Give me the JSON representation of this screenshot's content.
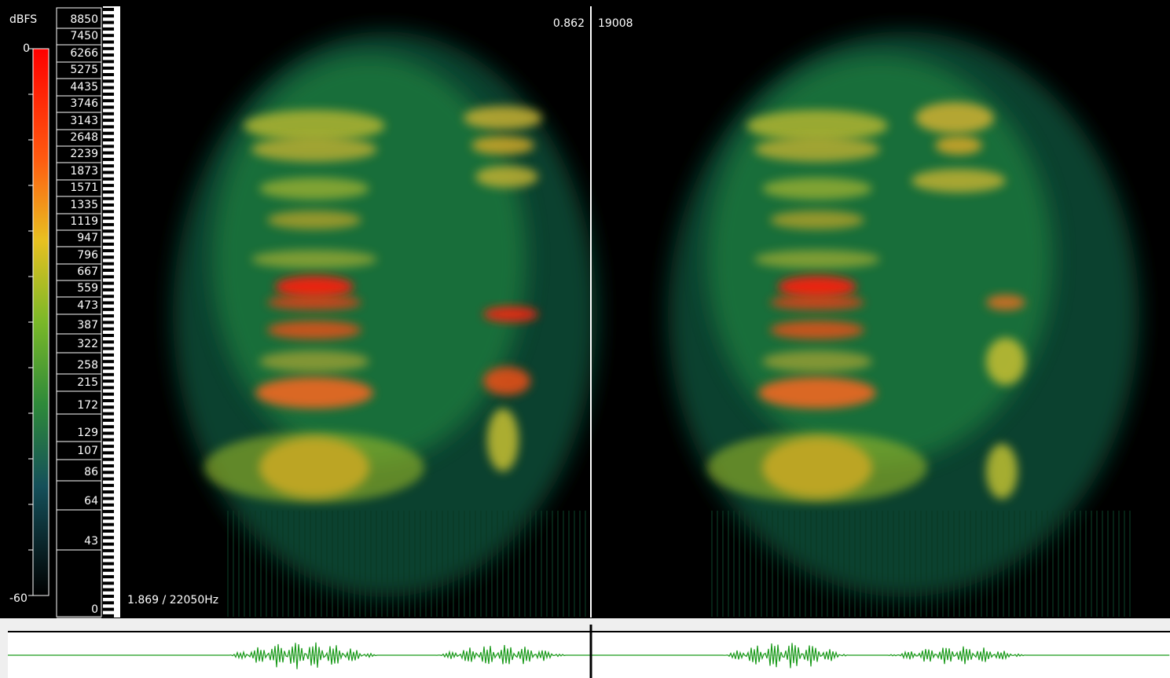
{
  "level_scale": {
    "unit": "dBFS",
    "top": "0",
    "bottom": "-60"
  },
  "frequency_labels": [
    "8850",
    "7450",
    "6266",
    "5275",
    "4435",
    "3746",
    "3143",
    "2648",
    "2239",
    "1873",
    "1571",
    "1335",
    "1119",
    "947",
    "796",
    "667",
    "559",
    "473",
    "387",
    "322",
    "258",
    "215",
    "172",
    "129",
    "107",
    "86",
    "64",
    "43",
    "0"
  ],
  "cursor": {
    "time": "0.862",
    "frequency": "19008"
  },
  "status": "1.869 / 22050Hz"
}
